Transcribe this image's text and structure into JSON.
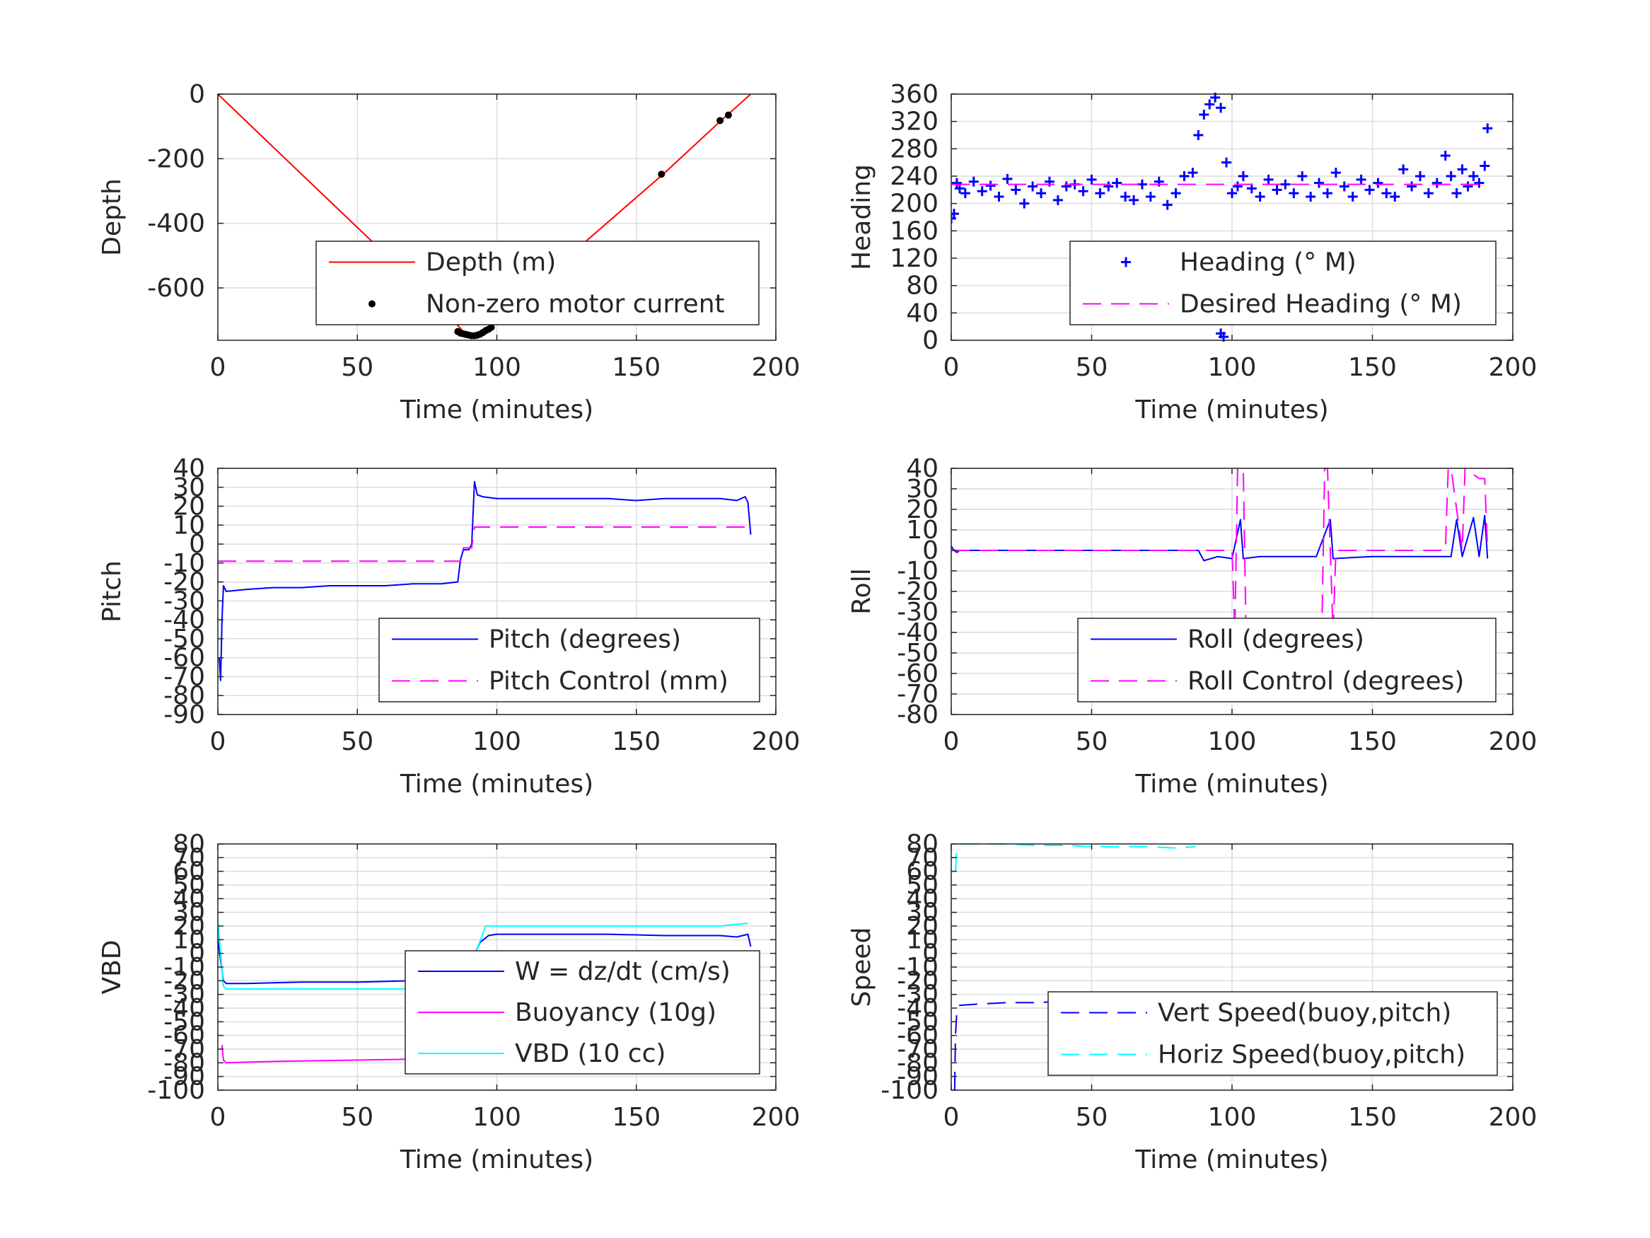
{
  "chart_data": [
    {
      "type": "line",
      "id": "depth",
      "xlabel": "Time (minutes)",
      "ylabel": "Depth",
      "xlim": [
        0,
        200
      ],
      "ylim": [
        -762,
        0
      ],
      "xticks": [
        0,
        50,
        100,
        150,
        200
      ],
      "yticks": [
        0,
        -200,
        -400,
        -600
      ],
      "grid": true,
      "legend_position": "bottom-right",
      "series": [
        {
          "name": "Depth (m)",
          "style": "solid",
          "marker": "none",
          "color": "#ff0000",
          "x": [
            0,
            30,
            60,
            80,
            88,
            92,
            96,
            100,
            130,
            160,
            180,
            191
          ],
          "y": [
            0,
            -248,
            -495,
            -660,
            -735,
            -745,
            -735,
            -700,
            -470,
            -245,
            -85,
            0
          ]
        },
        {
          "name": "Non-zero motor current",
          "style": "none",
          "marker": "dot",
          "color": "#000000",
          "x": [
            86,
            87,
            88,
            89,
            90,
            91,
            92,
            93,
            94,
            95,
            96,
            97,
            98,
            159,
            180,
            183
          ],
          "y": [
            -735,
            -740,
            -742,
            -744,
            -746,
            -748,
            -748,
            -746,
            -743,
            -738,
            -732,
            -728,
            -722,
            -248,
            -82,
            -65
          ]
        }
      ]
    },
    {
      "type": "line",
      "id": "heading",
      "xlabel": "Time (minutes)",
      "ylabel": "Heading",
      "xlim": [
        0,
        200
      ],
      "ylim": [
        0,
        360
      ],
      "xticks": [
        0,
        50,
        100,
        150,
        200
      ],
      "yticks": [
        0,
        40,
        80,
        120,
        160,
        200,
        240,
        280,
        320,
        360
      ],
      "grid": true,
      "legend_position": "bottom-right",
      "series": [
        {
          "name": "Heading (° M)",
          "style": "none",
          "marker": "plus",
          "color": "#0000ff",
          "x": [
            0,
            1,
            2,
            3,
            5,
            8,
            11,
            14,
            17,
            20,
            23,
            26,
            29,
            32,
            35,
            38,
            41,
            44,
            47,
            50,
            53,
            56,
            59,
            62,
            65,
            68,
            71,
            74,
            77,
            80,
            83,
            86,
            88,
            90,
            92,
            94,
            96,
            98,
            100,
            102,
            104,
            107,
            110,
            113,
            116,
            119,
            122,
            125,
            128,
            131,
            134,
            137,
            140,
            143,
            146,
            149,
            152,
            155,
            158,
            161,
            164,
            167,
            170,
            173,
            176,
            178,
            180,
            182,
            184,
            186,
            188,
            190,
            191,
            96,
            97
          ],
          "y": [
            178,
            185,
            230,
            222,
            215,
            232,
            218,
            226,
            210,
            236,
            220,
            200,
            225,
            215,
            232,
            205,
            225,
            228,
            218,
            235,
            215,
            225,
            230,
            210,
            205,
            228,
            210,
            232,
            198,
            215,
            240,
            245,
            300,
            330,
            345,
            355,
            340,
            260,
            215,
            225,
            240,
            222,
            210,
            235,
            220,
            228,
            215,
            240,
            210,
            230,
            215,
            245,
            225,
            210,
            235,
            220,
            230,
            215,
            210,
            250,
            225,
            240,
            215,
            230,
            270,
            240,
            215,
            250,
            225,
            240,
            230,
            255,
            310,
            10,
            5
          ]
        },
        {
          "name": "Desired Heading (° M)",
          "style": "dashed",
          "marker": "none",
          "color": "#ff00ff",
          "x": [
            0,
            191
          ],
          "y": [
            228,
            228
          ]
        }
      ]
    },
    {
      "type": "line",
      "id": "pitch",
      "xlabel": "Time (minutes)",
      "ylabel": "Pitch",
      "xlim": [
        0,
        200
      ],
      "ylim": [
        -90,
        40
      ],
      "xticks": [
        0,
        50,
        100,
        150,
        200
      ],
      "yticks": [
        -90,
        -80,
        -70,
        -60,
        -50,
        -40,
        -30,
        -20,
        -10,
        0,
        10,
        20,
        30,
        40
      ],
      "grid": true,
      "legend_position": "bottom-right",
      "series": [
        {
          "name": "Pitch (degrees)",
          "style": "solid",
          "marker": "none",
          "color": "#0000ff",
          "x": [
            0.5,
            1,
            1.5,
            2,
            3,
            10,
            20,
            30,
            40,
            50,
            60,
            70,
            80,
            86,
            87,
            88,
            90,
            91,
            92,
            93,
            95,
            100,
            110,
            120,
            130,
            140,
            150,
            160,
            170,
            180,
            186,
            189,
            190,
            191
          ],
          "y": [
            -60,
            -72,
            -40,
            -22,
            -25,
            -24,
            -23,
            -23,
            -22,
            -22,
            -22,
            -21,
            -21,
            -20,
            -8,
            -3,
            -3,
            0,
            33,
            26,
            25,
            24,
            24,
            24,
            24,
            24,
            23,
            24,
            24,
            24,
            23,
            25,
            22,
            5
          ]
        },
        {
          "name": "Pitch Control (mm)",
          "style": "dashed",
          "marker": "none",
          "color": "#ff00ff",
          "x": [
            0,
            87,
            88,
            91,
            92,
            191
          ],
          "y": [
            -9,
            -9,
            -2,
            -2,
            9,
            9
          ]
        }
      ]
    },
    {
      "type": "line",
      "id": "roll",
      "xlabel": "Time (minutes)",
      "ylabel": "Roll",
      "xlim": [
        0,
        200
      ],
      "ylim": [
        -80,
        40
      ],
      "xticks": [
        0,
        50,
        100,
        150,
        200
      ],
      "yticks": [
        -80,
        -70,
        -60,
        -50,
        -40,
        -30,
        -20,
        -10,
        0,
        10,
        20,
        30,
        40
      ],
      "grid": true,
      "legend_position": "bottom-right",
      "series": [
        {
          "name": "Roll (degrees)",
          "style": "solid",
          "marker": "none",
          "color": "#0000ff",
          "x": [
            0,
            1,
            2,
            3,
            10,
            20,
            40,
            60,
            80,
            88,
            90,
            95,
            100,
            103,
            104,
            110,
            130,
            135,
            136,
            150,
            170,
            178,
            180,
            182,
            186,
            188,
            190,
            191
          ],
          "y": [
            2,
            0,
            -1,
            0,
            0,
            0,
            0,
            0,
            0,
            0,
            -5,
            -3,
            -4,
            15,
            -4,
            -3,
            -3,
            15,
            -4,
            -3,
            -3,
            -3,
            15,
            -3,
            16,
            -3,
            17,
            -4
          ]
        },
        {
          "name": "Roll Control (degrees)",
          "style": "dashed",
          "marker": "none",
          "color": "#ff00ff",
          "x": [
            0,
            100,
            101,
            102,
            104,
            105,
            132,
            133,
            134,
            136,
            137,
            176,
            177,
            178,
            182,
            183,
            188,
            190,
            191
          ],
          "y": [
            0,
            0,
            -40,
            40,
            40,
            -40,
            -40,
            40,
            40,
            -40,
            0,
            0,
            40,
            40,
            0,
            40,
            35,
            35,
            0
          ]
        }
      ]
    },
    {
      "type": "line",
      "id": "vbd",
      "xlabel": "Time (minutes)",
      "ylabel": "VBD",
      "xlim": [
        0,
        200
      ],
      "ylim": [
        -100,
        80
      ],
      "xticks": [
        0,
        50,
        100,
        150,
        200
      ],
      "yticks": [
        -100,
        -90,
        -80,
        -70,
        -60,
        -50,
        -40,
        -30,
        -20,
        -10,
        0,
        10,
        20,
        30,
        40,
        50,
        60,
        70,
        80
      ],
      "grid": true,
      "legend_position": "bottom-right",
      "series": [
        {
          "name": "W = dz/dt (cm/s)",
          "style": "solid",
          "marker": "none",
          "color": "#0000ff",
          "x": [
            0,
            1,
            2,
            3,
            10,
            30,
            50,
            70,
            85,
            88,
            91,
            94,
            97,
            100,
            120,
            140,
            160,
            180,
            186,
            190,
            191
          ],
          "y": [
            10,
            -5,
            -20,
            -22,
            -22,
            -21,
            -21,
            -20,
            -19,
            -15,
            -5,
            8,
            13,
            14,
            14,
            14,
            13,
            13,
            12,
            14,
            5
          ]
        },
        {
          "name": "Buoyancy (10g)",
          "style": "solid",
          "marker": "none",
          "color": "#ff00ff",
          "x": [
            1.5,
            2,
            3,
            20,
            50,
            80,
            87
          ],
          "y": [
            -67,
            -78,
            -80,
            -79,
            -78,
            -77,
            -77
          ]
        },
        {
          "name": "VBD (10 cc)",
          "style": "solid",
          "marker": "none",
          "color": "#00ffff",
          "x": [
            0,
            1,
            2,
            3,
            40,
            85,
            88,
            96,
            100,
            140,
            180,
            190
          ],
          "y": [
            24,
            0,
            -24,
            -26,
            -26,
            -26,
            -24,
            20,
            20,
            20,
            20,
            22
          ]
        }
      ]
    },
    {
      "type": "line",
      "id": "speed",
      "xlabel": "Time (minutes)",
      "ylabel": "Speed",
      "xlim": [
        0,
        200
      ],
      "ylim": [
        -100,
        80
      ],
      "xticks": [
        0,
        50,
        100,
        150,
        200
      ],
      "yticks": [
        -100,
        -90,
        -80,
        -70,
        -60,
        -50,
        -40,
        -30,
        -20,
        -10,
        0,
        10,
        20,
        30,
        40,
        50,
        60,
        70,
        80
      ],
      "grid": true,
      "legend_position": "bottom-right",
      "series": [
        {
          "name": "Vert Speed(buoy,pitch)",
          "style": "dashed",
          "marker": "none",
          "color": "#0000ff",
          "x": [
            1.2,
            1.5,
            2,
            3,
            10,
            20,
            30,
            40,
            50,
            60,
            70,
            80,
            87
          ],
          "y": [
            -100,
            -60,
            -42,
            -38,
            -37,
            -36,
            -36,
            -35,
            -35,
            -34,
            -34,
            -34,
            -34
          ]
        },
        {
          "name": "Horiz Speed(buoy,pitch)",
          "style": "dashed",
          "marker": "none",
          "color": "#00ffff",
          "x": [
            1.5,
            2,
            3,
            10,
            20,
            30,
            40,
            50,
            60,
            70,
            80,
            87
          ],
          "y": [
            60,
            78,
            80,
            80,
            80,
            79,
            79,
            78,
            78,
            78,
            77,
            78
          ]
        }
      ]
    }
  ]
}
